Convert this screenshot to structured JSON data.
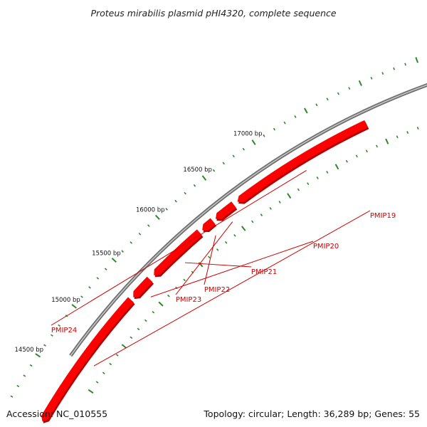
{
  "title": "Proteus mirabilis plasmid pHI4320, complete sequence",
  "footer": {
    "accession": "Accession: NC_010555",
    "summary": "Topology: circular; Length: 36,289 bp; Genes: 55"
  },
  "plasmid": {
    "topology": "circular",
    "length_bp": 36289,
    "gene_count": 55
  },
  "ticks": [
    {
      "position_bp": 14500,
      "label": "14500 bp"
    },
    {
      "position_bp": 15000,
      "label": "15000 bp"
    },
    {
      "position_bp": 15500,
      "label": "15500 bp"
    },
    {
      "position_bp": 16000,
      "label": "16000 bp"
    },
    {
      "position_bp": 16500,
      "label": "16500 bp"
    },
    {
      "position_bp": 17000,
      "label": "17000 bp"
    }
  ],
  "genes": [
    {
      "name": "PMIP19",
      "start_bp": 14050,
      "end_bp": 15350,
      "strand": "-"
    },
    {
      "name": "PMIP20",
      "start_bp": 15380,
      "end_bp": 15590,
      "strand": "-"
    },
    {
      "name": "PMIP21",
      "start_bp": 15640,
      "end_bp": 16180,
      "strand": "-"
    },
    {
      "name": "PMIP22",
      "start_bp": 16210,
      "end_bp": 16330,
      "strand": "-"
    },
    {
      "name": "PMIP23",
      "start_bp": 16360,
      "end_bp": 16560,
      "strand": "-"
    },
    {
      "name": "PMIP24",
      "start_bp": 16600,
      "end_bp": 17900,
      "strand": "-"
    }
  ],
  "colors": {
    "backbone": "#8a8a8a",
    "gene": "#ff0000",
    "gene_shadow": "#b00000",
    "tick": "#2a8a2a",
    "label": "#cc0000"
  }
}
